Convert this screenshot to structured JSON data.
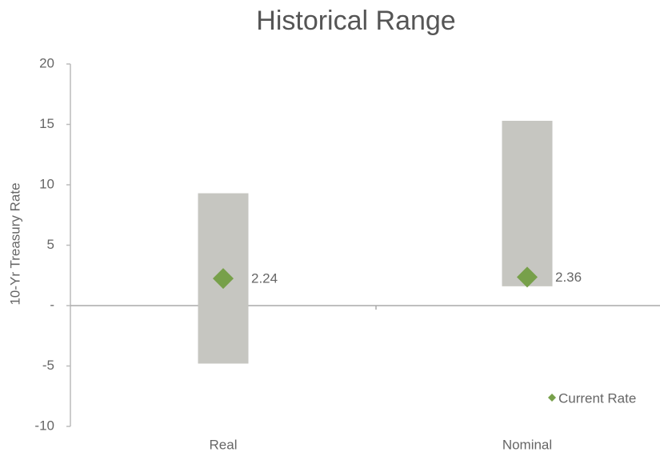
{
  "chart_data": {
    "type": "range_bar",
    "title": "Historical Range",
    "y_label": "10-Yr Treasury Rate",
    "categories": [
      "Real",
      "Nominal"
    ],
    "low": [
      -4.8,
      1.6
    ],
    "high": [
      9.3,
      15.3
    ],
    "bar_color": "#c6c6c1",
    "series": [
      {
        "name": "Current Rate",
        "color": "#77a04a",
        "values": [
          2.24,
          2.36
        ]
      }
    ],
    "ylim": [
      -10,
      20
    ],
    "yticks": [
      -10,
      -5,
      {
        "value": 0,
        "label": "-"
      },
      5,
      10,
      15,
      20
    ],
    "legend": "lower right"
  }
}
